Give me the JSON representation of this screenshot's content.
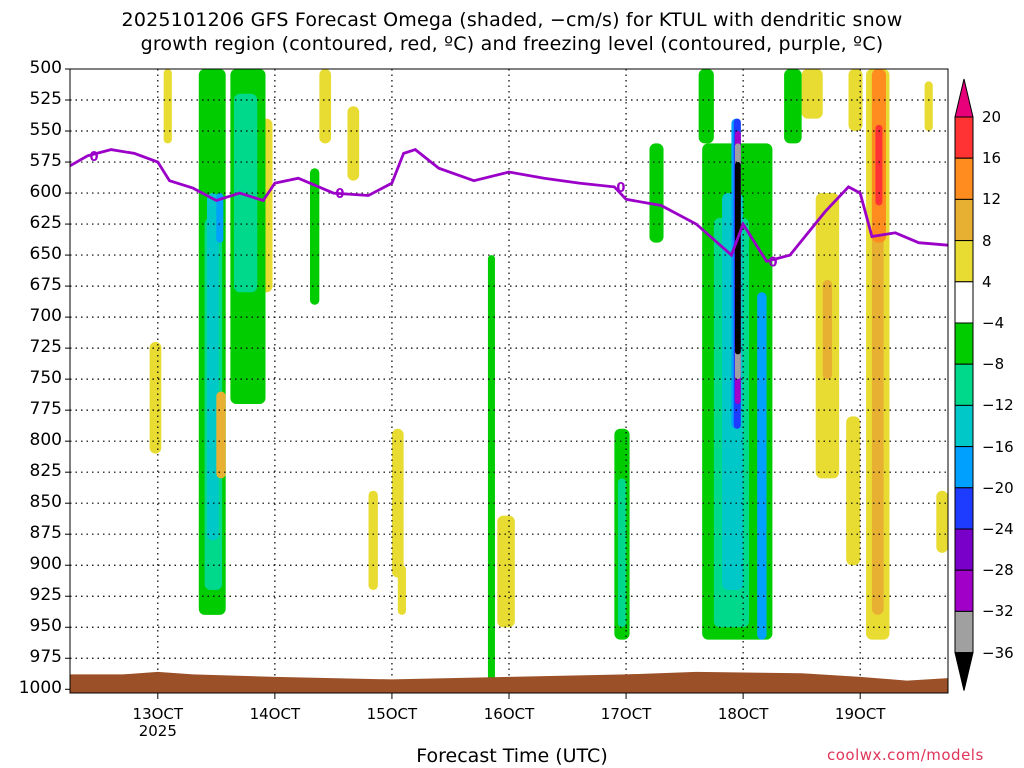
{
  "chart_data": {
    "type": "heatmap",
    "title_line1": "2025101206 GFS Forecast Omega (shaded, −cm/s) for KTUL with dendritic snow",
    "title_line2": "growth region (contoured, red, ºC) and freezing level (contoured, purple, ºC)",
    "xlabel": "Forecast Time (UTC)",
    "x_ticks": [
      {
        "label": "13OCT",
        "sub": "2025",
        "day": 13
      },
      {
        "label": "14OCT",
        "sub": "",
        "day": 14
      },
      {
        "label": "15OCT",
        "sub": "",
        "day": 15
      },
      {
        "label": "16OCT",
        "sub": "",
        "day": 16
      },
      {
        "label": "17OCT",
        "sub": "",
        "day": 17
      },
      {
        "label": "18OCT",
        "sub": "",
        "day": 18
      },
      {
        "label": "19OCT",
        "sub": "",
        "day": 19
      }
    ],
    "x_range_days": [
      12.25,
      19.75
    ],
    "y_levels_hpa": [
      500,
      525,
      550,
      575,
      600,
      625,
      650,
      675,
      700,
      725,
      750,
      775,
      800,
      825,
      850,
      875,
      900,
      925,
      950,
      975,
      1000
    ],
    "y_range_hpa": [
      500,
      1003
    ],
    "colorbar": {
      "labels": [
        "20",
        "16",
        "12",
        "8",
        "4",
        "−4",
        "−8",
        "−12",
        "−16",
        "−20",
        "−24",
        "−28",
        "−32",
        "−36"
      ],
      "colors": [
        "#e8007a",
        "#ff3333",
        "#ff8c1e",
        "#e8b032",
        "#e8dc32",
        "#ffffff",
        "#00cc00",
        "#00d88c",
        "#00c8c8",
        "#00a0ff",
        "#1e3cff",
        "#7800c8",
        "#a000c8",
        "#a0a0a0",
        "#000000"
      ]
    },
    "freezing_level": {
      "label": "0",
      "color": "#9b00c8",
      "points": [
        [
          12.25,
          578
        ],
        [
          12.4,
          570
        ],
        [
          12.6,
          565
        ],
        [
          12.8,
          568
        ],
        [
          13.0,
          575
        ],
        [
          13.1,
          590
        ],
        [
          13.3,
          596
        ],
        [
          13.5,
          606
        ],
        [
          13.7,
          600
        ],
        [
          13.9,
          606
        ],
        [
          14.0,
          592
        ],
        [
          14.2,
          588
        ],
        [
          14.5,
          600
        ],
        [
          14.8,
          602
        ],
        [
          15.0,
          592
        ],
        [
          15.1,
          568
        ],
        [
          15.2,
          565
        ],
        [
          15.4,
          580
        ],
        [
          15.7,
          590
        ],
        [
          16.0,
          583
        ],
        [
          16.3,
          588
        ],
        [
          16.6,
          592
        ],
        [
          16.9,
          595
        ],
        [
          17.0,
          605
        ],
        [
          17.3,
          610
        ],
        [
          17.6,
          625
        ],
        [
          17.9,
          650
        ],
        [
          18.0,
          625
        ],
        [
          18.2,
          655
        ],
        [
          18.4,
          650
        ],
        [
          18.7,
          615
        ],
        [
          18.9,
          595
        ],
        [
          19.0,
          600
        ],
        [
          19.1,
          635
        ],
        [
          19.3,
          632
        ],
        [
          19.5,
          640
        ],
        [
          19.75,
          642
        ]
      ]
    },
    "surface_color": "#9c5028",
    "regions": [
      {
        "cat": "w4",
        "x0": 13.05,
        "x1": 13.12,
        "p0": 500,
        "p1": 560
      },
      {
        "cat": "w4",
        "x0": 12.93,
        "x1": 13.03,
        "p0": 720,
        "p1": 810
      },
      {
        "cat": "w4",
        "x0": 13.82,
        "x1": 13.98,
        "p0": 540,
        "p1": 680
      },
      {
        "cat": "w4",
        "x0": 14.38,
        "x1": 14.48,
        "p0": 500,
        "p1": 560
      },
      {
        "cat": "w4",
        "x0": 14.62,
        "x1": 14.72,
        "p0": 530,
        "p1": 590
      },
      {
        "cat": "w4",
        "x0": 15.0,
        "x1": 15.1,
        "p0": 790,
        "p1": 910
      },
      {
        "cat": "w4",
        "x0": 14.8,
        "x1": 14.88,
        "p0": 840,
        "p1": 920
      },
      {
        "cat": "w4",
        "x0": 15.05,
        "x1": 15.12,
        "p0": 900,
        "p1": 940
      },
      {
        "cat": "w4",
        "x0": 15.9,
        "x1": 16.05,
        "p0": 860,
        "p1": 950
      },
      {
        "cat": "w4",
        "x0": 18.05,
        "x1": 18.2,
        "p0": 590,
        "p1": 640
      },
      {
        "cat": "w4",
        "x0": 18.5,
        "x1": 18.68,
        "p0": 500,
        "p1": 540
      },
      {
        "cat": "w4",
        "x0": 18.62,
        "x1": 18.82,
        "p0": 600,
        "p1": 830
      },
      {
        "cat": "w8",
        "x0": 18.68,
        "x1": 18.76,
        "p0": 670,
        "p1": 750
      },
      {
        "cat": "w4",
        "x0": 18.88,
        "x1": 19.0,
        "p0": 780,
        "p1": 900
      },
      {
        "cat": "w4",
        "x0": 18.9,
        "x1": 19.02,
        "p0": 500,
        "p1": 550
      },
      {
        "cat": "w4",
        "x0": 19.55,
        "x1": 19.62,
        "p0": 510,
        "p1": 550
      },
      {
        "cat": "w4",
        "x0": 19.65,
        "x1": 19.75,
        "p0": 840,
        "p1": 890
      },
      {
        "cat": "w4",
        "x0": 19.05,
        "x1": 19.25,
        "p0": 500,
        "p1": 960
      },
      {
        "cat": "w8",
        "x0": 19.1,
        "x1": 19.2,
        "p0": 500,
        "p1": 940
      },
      {
        "cat": "w12",
        "x0": 19.1,
        "x1": 19.22,
        "p0": 500,
        "p1": 640
      },
      {
        "cat": "w16",
        "x0": 19.13,
        "x1": 19.19,
        "p0": 545,
        "p1": 610
      },
      {
        "cat": "c4",
        "x0": 13.35,
        "x1": 13.58,
        "p0": 500,
        "p1": 940
      },
      {
        "cat": "c8",
        "x0": 13.4,
        "x1": 13.55,
        "p0": 620,
        "p1": 920
      },
      {
        "cat": "c12",
        "x0": 13.42,
        "x1": 13.52,
        "p0": 600,
        "p1": 880
      },
      {
        "cat": "c16",
        "x0": 13.5,
        "x1": 13.56,
        "p0": 600,
        "p1": 640
      },
      {
        "cat": "w8",
        "x0": 13.5,
        "x1": 13.58,
        "p0": 760,
        "p1": 830
      },
      {
        "cat": "c4",
        "x0": 13.62,
        "x1": 13.92,
        "p0": 500,
        "p1": 770
      },
      {
        "cat": "c8",
        "x0": 13.65,
        "x1": 13.85,
        "p0": 520,
        "p1": 680
      },
      {
        "cat": "c4",
        "x0": 14.3,
        "x1": 14.38,
        "p0": 580,
        "p1": 690
      },
      {
        "cat": "c4",
        "x0": 15.82,
        "x1": 15.88,
        "p0": 650,
        "p1": 1000
      },
      {
        "cat": "c4",
        "x0": 16.9,
        "x1": 17.03,
        "p0": 790,
        "p1": 960
      },
      {
        "cat": "c8",
        "x0": 16.93,
        "x1": 17.0,
        "p0": 830,
        "p1": 950
      },
      {
        "cat": "c4",
        "x0": 17.2,
        "x1": 17.32,
        "p0": 560,
        "p1": 640
      },
      {
        "cat": "c4",
        "x0": 17.62,
        "x1": 17.75,
        "p0": 500,
        "p1": 560
      },
      {
        "cat": "c4",
        "x0": 17.65,
        "x1": 18.25,
        "p0": 560,
        "p1": 960
      },
      {
        "cat": "c8",
        "x0": 17.75,
        "x1": 18.05,
        "p0": 620,
        "p1": 950
      },
      {
        "cat": "c12",
        "x0": 17.82,
        "x1": 18.0,
        "p0": 600,
        "p1": 920
      },
      {
        "cat": "c16",
        "x0": 17.9,
        "x1": 17.98,
        "p0": 540,
        "p1": 790
      },
      {
        "cat": "c20",
        "x0": 17.92,
        "x1": 17.98,
        "p0": 540,
        "p1": 790
      },
      {
        "cat": "c28",
        "x0": 17.93,
        "x1": 17.98,
        "p0": 550,
        "p1": 770
      },
      {
        "cat": "c32",
        "x0": 17.93,
        "x1": 17.98,
        "p0": 560,
        "p1": 750
      },
      {
        "cat": "c36",
        "x0": 17.93,
        "x1": 17.98,
        "p0": 575,
        "p1": 730
      },
      {
        "cat": "c16",
        "x0": 18.12,
        "x1": 18.2,
        "p0": 680,
        "p1": 960
      },
      {
        "cat": "c4",
        "x0": 18.35,
        "x1": 18.5,
        "p0": 500,
        "p1": 560
      }
    ]
  },
  "credit": "coolwx.com/models"
}
